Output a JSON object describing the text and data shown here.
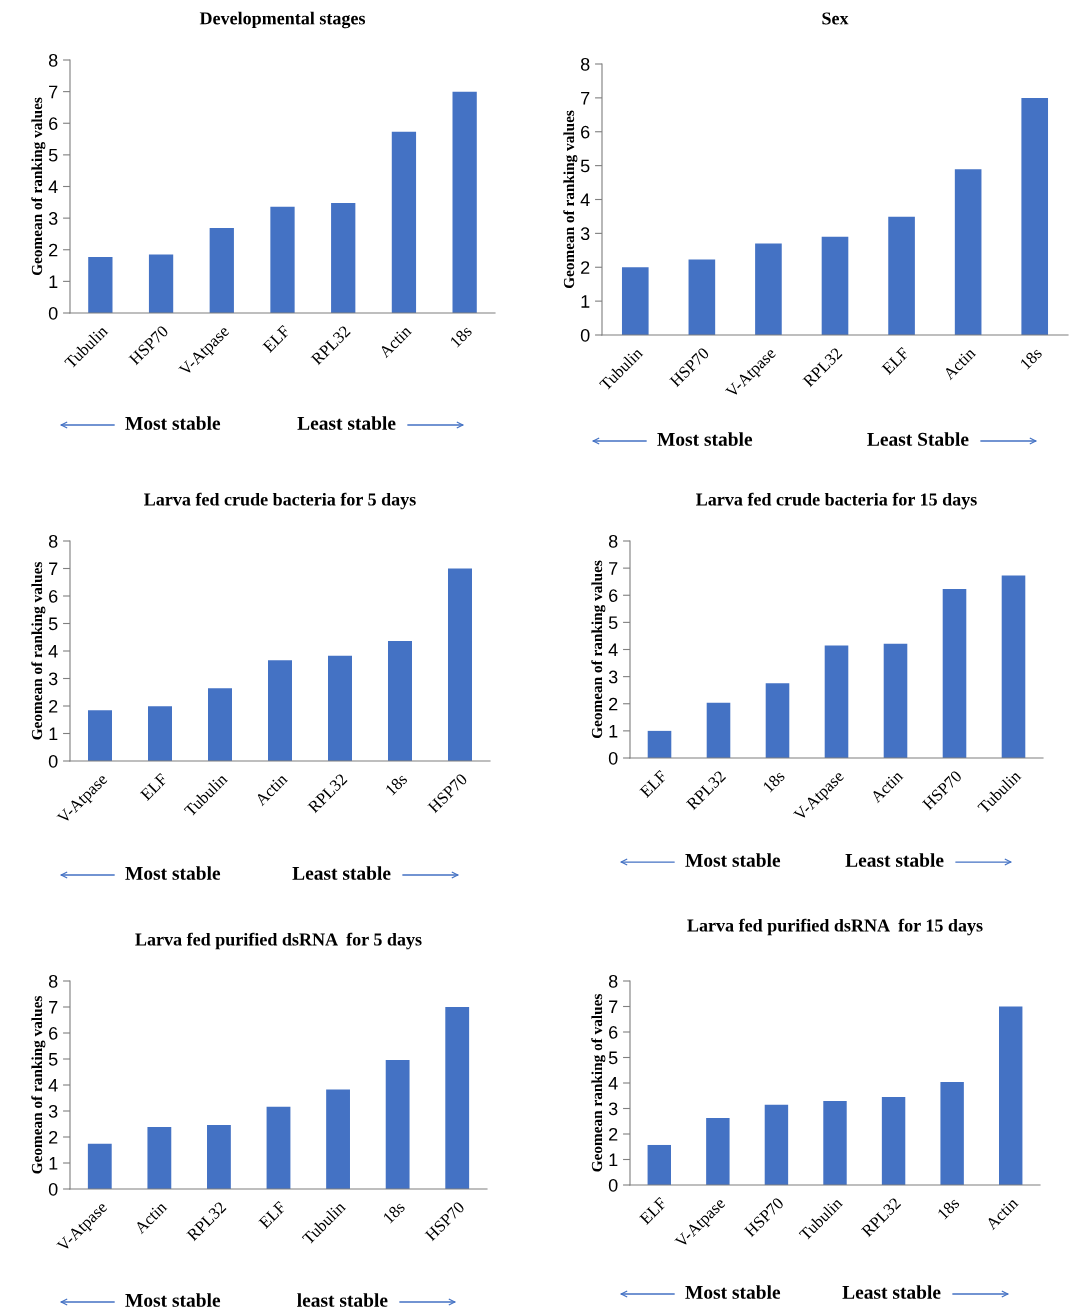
{
  "chart_data": [
    {
      "type": "bar",
      "title": "Developmental stages",
      "ylabel": "Geomean of ranking values",
      "categories": [
        "Tubulin",
        "HSP70",
        "V-Atpase",
        "ELF",
        "RPL32",
        "Actin",
        "18s"
      ],
      "values": [
        1.77,
        1.85,
        2.69,
        3.36,
        3.48,
        5.73,
        7.0
      ],
      "color": "#4472c4",
      "ylim": [
        0,
        8
      ],
      "yticks": [
        0,
        1,
        2,
        3,
        4,
        5,
        6,
        7,
        8
      ],
      "grid": false,
      "legend": false,
      "annotations": [
        "Most stable",
        "Least stable"
      ]
    },
    {
      "type": "bar",
      "title": "Sex",
      "ylabel": "Geomean of ranking values",
      "categories": [
        "Tubulin",
        "HSP70",
        "V-Atpase",
        "RPL32",
        "ELF",
        "Actin",
        "18s"
      ],
      "values": [
        2.0,
        2.23,
        2.7,
        2.9,
        3.49,
        4.89,
        7.0
      ],
      "color": "#4472c4",
      "ylim": [
        0,
        8
      ],
      "yticks": [
        0,
        1,
        2,
        3,
        4,
        5,
        6,
        7,
        8
      ],
      "grid": false,
      "legend": false,
      "annotations": [
        "Most stable",
        "Least Stable"
      ]
    },
    {
      "type": "bar",
      "title": "Larva fed crude bacteria for 5 days",
      "ylabel": "Geomean of ranking values",
      "categories": [
        "V-Atpase",
        "ELF",
        "Tubulin",
        "Actin",
        "RPL32",
        "18s",
        "HSP70"
      ],
      "values": [
        1.85,
        1.99,
        2.65,
        3.66,
        3.83,
        4.36,
        7.0
      ],
      "color": "#4472c4",
      "ylim": [
        0,
        8
      ],
      "yticks": [
        0,
        1,
        2,
        3,
        4,
        5,
        6,
        7,
        8
      ],
      "grid": false,
      "legend": false,
      "annotations": [
        "Most stable",
        "Least stable"
      ]
    },
    {
      "type": "bar",
      "title": "Larva fed crude bacteria for 15 days",
      "ylabel": "Geomean of ranking values",
      "categories": [
        "ELF",
        "RPL32",
        "18s",
        "V-Atpase",
        "Actin",
        "HSP70",
        "Tubulin"
      ],
      "values": [
        1.0,
        2.04,
        2.76,
        4.15,
        4.21,
        6.23,
        6.73
      ],
      "color": "#4472c4",
      "ylim": [
        0,
        8
      ],
      "yticks": [
        0,
        1,
        2,
        3,
        4,
        5,
        6,
        7,
        8
      ],
      "grid": false,
      "legend": false,
      "annotations": [
        "Most stable",
        "Least stable"
      ]
    },
    {
      "type": "bar",
      "title": "Larva fed purified dsRNA  for 5 days",
      "ylabel": "Geomean of ranking values",
      "categories": [
        "V-Atpase",
        "Actin",
        "RPL32",
        "ELF",
        "Tubulin",
        "18s",
        "HSP70"
      ],
      "values": [
        1.74,
        2.38,
        2.46,
        3.16,
        3.83,
        4.96,
        7.0
      ],
      "color": "#4472c4",
      "ylim": [
        0,
        8
      ],
      "yticks": [
        0,
        1,
        2,
        3,
        4,
        5,
        6,
        7,
        8
      ],
      "grid": false,
      "legend": false,
      "annotations": [
        "Most stable",
        "least stable"
      ]
    },
    {
      "type": "bar",
      "title": "Larva fed purified dsRNA  for 15 days",
      "ylabel": "Geomean ranking of values",
      "categories": [
        "ELF",
        "V-Atpase",
        "HSP70",
        "Tubulin",
        "RPL32",
        "18s",
        "Actin"
      ],
      "values": [
        1.57,
        2.63,
        3.15,
        3.29,
        3.45,
        4.04,
        7.0
      ],
      "color": "#4472c4",
      "ylim": [
        0,
        8
      ],
      "yticks": [
        0,
        1,
        2,
        3,
        4,
        5,
        6,
        7,
        8
      ],
      "grid": false,
      "legend": false,
      "annotations": [
        "Most stable",
        "Least stable"
      ]
    }
  ]
}
